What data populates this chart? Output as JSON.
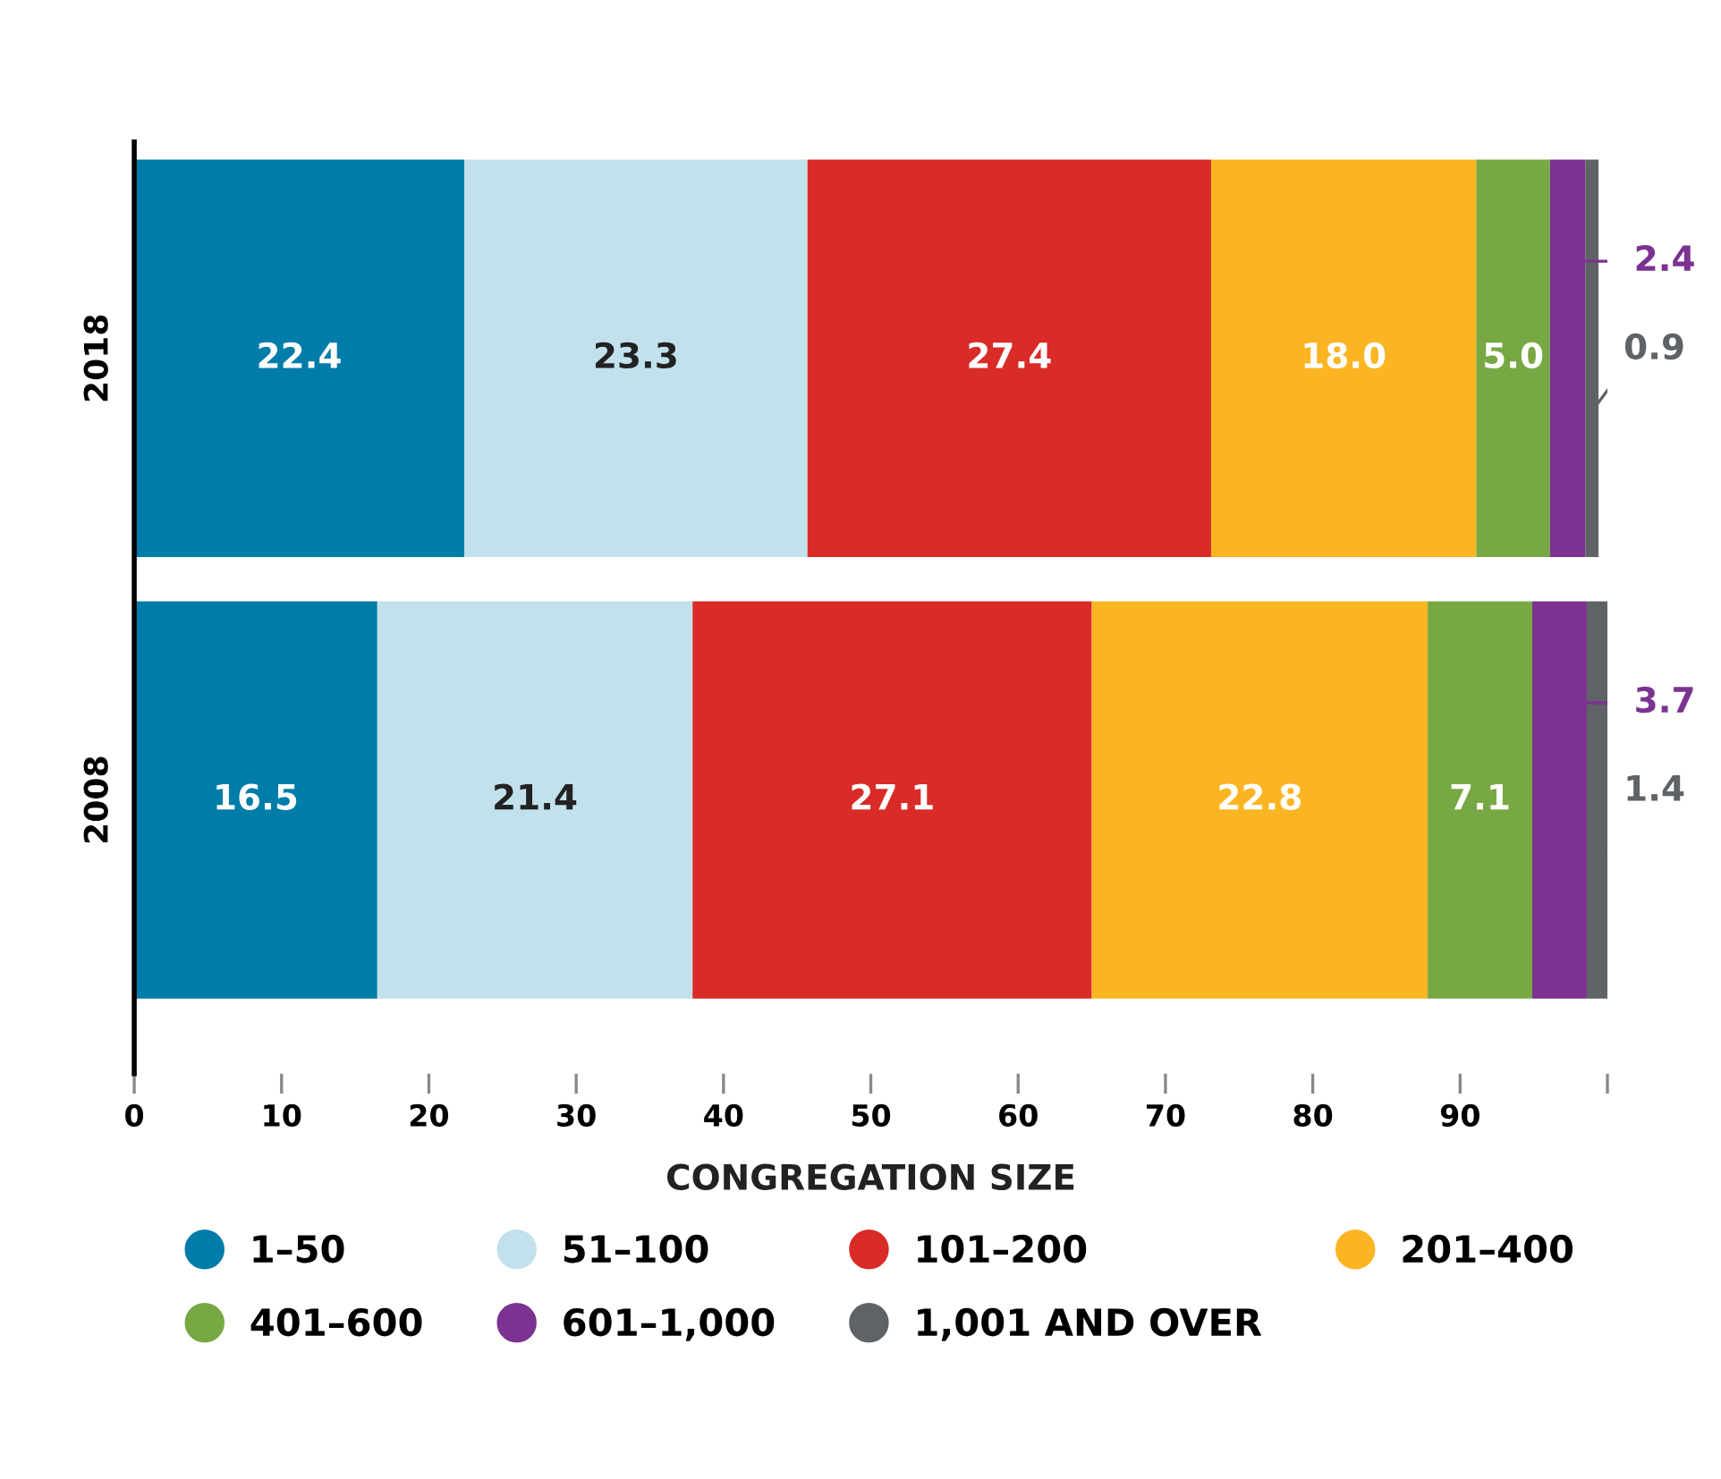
{
  "chart_data": {
    "type": "bar",
    "orientation": "horizontal",
    "stacked": true,
    "categories": [
      "2018",
      "2008"
    ],
    "series": [
      {
        "name": "1–50",
        "color": "#007ca8",
        "values": [
          22.4,
          16.5
        ],
        "value_labels": [
          "22.4",
          "16.5"
        ]
      },
      {
        "name": "51–100",
        "color": "#c2e1ec",
        "values": [
          23.3,
          21.4
        ],
        "value_labels": [
          "23.3",
          "21.4"
        ]
      },
      {
        "name": "101–200",
        "color": "#d92b27",
        "values": [
          27.4,
          27.1
        ],
        "value_labels": [
          "27.4",
          "27.1"
        ]
      },
      {
        "name": "201–400",
        "color": "#fbb522",
        "values": [
          18.0,
          22.8
        ],
        "value_labels": [
          "18.0",
          "22.8"
        ]
      },
      {
        "name": "401–600",
        "color": "#78a843",
        "values": [
          5.0,
          7.1
        ],
        "value_labels": [
          "5.0",
          "7.1"
        ]
      },
      {
        "name": "601–1,000",
        "color": "#7b3290",
        "values": [
          2.4,
          3.7
        ],
        "value_labels": [
          "2.4",
          "3.7"
        ]
      },
      {
        "name": "1,001 AND OVER",
        "color": "#5f6368",
        "values": [
          0.9,
          1.4
        ],
        "value_labels": [
          "0.9",
          "1.4"
        ]
      }
    ],
    "xlim": [
      0,
      100
    ],
    "xticks": [
      0,
      10,
      20,
      30,
      40,
      50,
      60,
      70,
      80,
      90,
      {
        "value": 100,
        "label": null
      }
    ],
    "legend": "bottom",
    "legend_title": "CONGREGATION SIZE",
    "grid": false
  }
}
